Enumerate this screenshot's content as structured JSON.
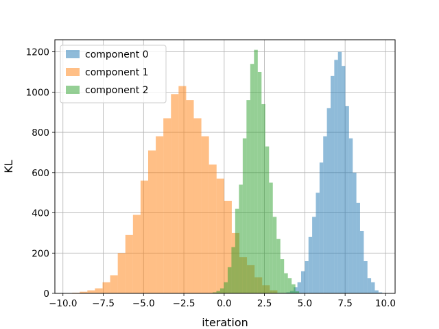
{
  "chart_data": {
    "type": "bar",
    "xlabel": "iteration",
    "ylabel": "KL",
    "xlim": [
      -10.5,
      10.6
    ],
    "ylim": [
      0,
      1260
    ],
    "xticks": [
      -10.0,
      -7.5,
      -5.0,
      -2.5,
      0.0,
      2.5,
      5.0,
      7.5,
      10.0
    ],
    "xtick_labels": [
      "−10.0",
      "−7.5",
      "−5.0",
      "−2.5",
      "0.0",
      "2.5",
      "5.0",
      "7.5",
      "10.0"
    ],
    "yticks": [
      0,
      200,
      400,
      600,
      800,
      1000,
      1200
    ],
    "ytick_labels": [
      "0",
      "200",
      "400",
      "600",
      "800",
      "1000",
      "1200"
    ],
    "grid": true,
    "legend_position": "top-left",
    "series": [
      {
        "name": "component 0",
        "color": "#1f77b4",
        "opacity": 0.5,
        "bin_width": 0.2286,
        "x": [
          3.4,
          3.6286,
          3.8571,
          4.0857,
          4.3143,
          4.5429,
          4.7714,
          5.0,
          5.2286,
          5.4571,
          5.6857,
          5.9143,
          6.1429,
          6.3714,
          6.6,
          6.8286,
          7.0571,
          7.2857,
          7.5143,
          7.7429,
          7.9714,
          8.2,
          8.4286,
          8.6571,
          8.8857,
          9.1143,
          9.3429,
          9.5714
        ],
        "values": [
          1,
          2,
          5,
          12,
          30,
          55,
          110,
          160,
          280,
          380,
          500,
          650,
          780,
          920,
          1080,
          1160,
          1200,
          1130,
          930,
          770,
          600,
          450,
          310,
          160,
          75,
          55,
          15,
          5
        ]
      },
      {
        "name": "component 1",
        "color": "#ff7f0e",
        "opacity": 0.5,
        "bin_width": 0.4714,
        "x": [
          -9.9,
          -9.4286,
          -8.9571,
          -8.4857,
          -8.0143,
          -7.5429,
          -7.0714,
          -6.6,
          -6.1286,
          -5.6571,
          -5.1857,
          -4.7143,
          -4.2429,
          -3.7714,
          -3.3,
          -2.8286,
          -2.3571,
          -1.8857,
          -1.4143,
          -0.9429,
          -0.4714,
          0.0,
          0.4714,
          0.9429,
          1.4143,
          1.8857,
          2.3571,
          2.8286
        ],
        "values": [
          1,
          3,
          8,
          15,
          25,
          55,
          90,
          200,
          290,
          390,
          560,
          710,
          780,
          870,
          990,
          1030,
          960,
          870,
          780,
          640,
          570,
          460,
          300,
          180,
          140,
          80,
          40,
          15
        ]
      },
      {
        "name": "component 2",
        "color": "#2ca02c",
        "opacity": 0.5,
        "bin_width": 0.2333,
        "x": [
          -0.95,
          -0.7167,
          -0.4833,
          -0.25,
          -0.0167,
          0.2167,
          0.45,
          0.6833,
          0.9167,
          1.15,
          1.3833,
          1.6167,
          1.85,
          2.0833,
          2.3167,
          2.55,
          2.7833,
          3.0167,
          3.25,
          3.4833,
          3.7167,
          3.95,
          4.1833,
          4.4167
        ],
        "values": [
          1,
          5,
          12,
          25,
          55,
          130,
          230,
          420,
          540,
          770,
          960,
          1140,
          1210,
          1100,
          940,
          730,
          550,
          380,
          270,
          170,
          100,
          75,
          45,
          10
        ]
      }
    ]
  }
}
